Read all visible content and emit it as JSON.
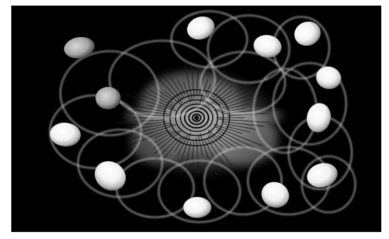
{
  "image": {
    "background": "#000000",
    "border": "#ffffff",
    "accent": "#ffffff"
  }
}
